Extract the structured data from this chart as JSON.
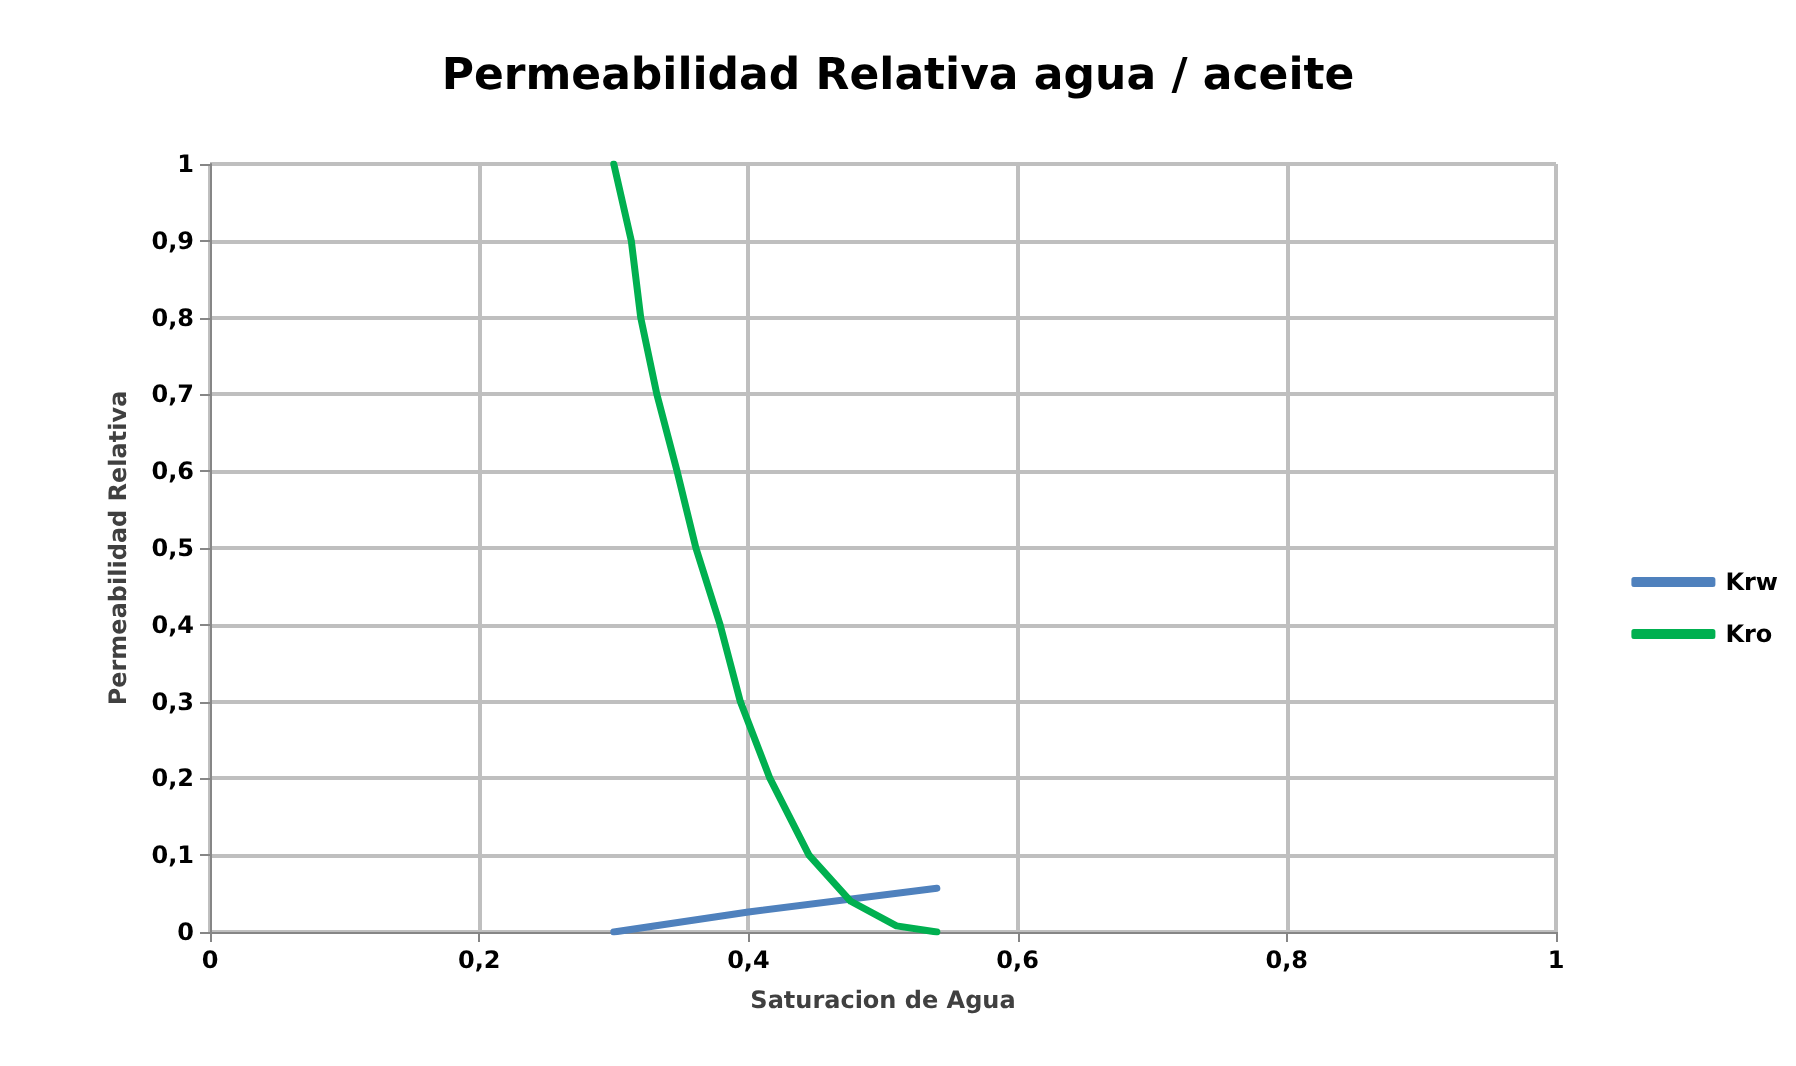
{
  "chart_data": {
    "type": "line",
    "title": "Permeabilidad Relativa agua / aceite",
    "xlabel": "Saturacion de Agua",
    "ylabel": "Permeabilidad Relativa",
    "series": [
      {
        "name": "Krw",
        "color": "#4f81bd",
        "x": [
          0.3,
          0.4,
          0.54
        ],
        "values": [
          0,
          0.026,
          0.057
        ]
      },
      {
        "name": "Kro",
        "color": "#00b050",
        "x": [
          0.3,
          0.313,
          0.32,
          0.332,
          0.347,
          0.361,
          0.379,
          0.394,
          0.416,
          0.445,
          0.476,
          0.51,
          0.54
        ],
        "values": [
          1,
          0.9,
          0.8,
          0.7,
          0.6,
          0.5,
          0.4,
          0.3,
          0.2,
          0.1,
          0.04,
          0.008,
          0
        ]
      }
    ],
    "xlim": [
      0,
      1
    ],
    "xticks": [
      0,
      {
        "value": 0.2,
        "label": "0,2"
      },
      {
        "value": 0.4,
        "label": "0,4"
      },
      {
        "value": 0.6,
        "label": "0,6"
      },
      {
        "value": 0.8,
        "label": "0,8"
      },
      1
    ],
    "ylim": [
      0,
      1
    ],
    "yticks": [
      0,
      {
        "value": 0.1,
        "label": "0,1"
      },
      {
        "value": 0.2,
        "label": "0,2"
      },
      {
        "value": 0.3,
        "label": "0,3"
      },
      {
        "value": 0.4,
        "label": "0,4"
      },
      {
        "value": 0.5,
        "label": "0,5"
      },
      {
        "value": 0.6,
        "label": "0,6"
      },
      {
        "value": 0.7,
        "label": "0,7"
      },
      {
        "value": 0.8,
        "label": "0,8"
      },
      {
        "value": 0.9,
        "label": "0,9"
      },
      1
    ],
    "grid": true,
    "legend": "right",
    "marker": "none",
    "line_style": "solid"
  }
}
